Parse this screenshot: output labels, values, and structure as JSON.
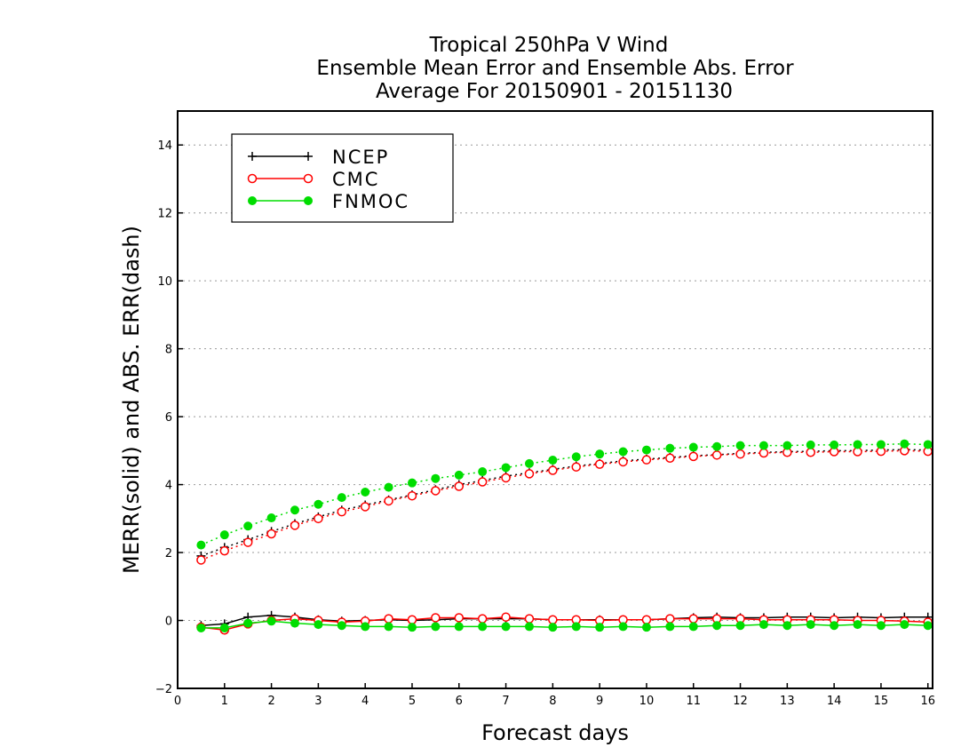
{
  "chart_data": {
    "type": "line",
    "title_lines": [
      "Tropical 250hPa V Wind",
      "Ensemble Mean Error and Ensemble Abs. Error",
      "Average For 20150901 - 20151130"
    ],
    "xlabel": "Forecast days",
    "ylabel": "MERR(solid) and ABS. ERR(dash)",
    "xlim": [
      0,
      16.1
    ],
    "ylim": [
      -2,
      15
    ],
    "xticks": [
      0,
      1,
      2,
      3,
      4,
      5,
      6,
      7,
      8,
      9,
      10,
      11,
      12,
      13,
      14,
      15,
      16
    ],
    "yticks": [
      -2,
      0,
      2,
      4,
      6,
      8,
      10,
      12,
      14
    ],
    "grid": "horizontal dotted",
    "legend_position": "top-left",
    "x": [
      0.5,
      1,
      1.5,
      2,
      2.5,
      3,
      3.5,
      4,
      4.5,
      5,
      5.5,
      6,
      6.5,
      7,
      7.5,
      8,
      8.5,
      9,
      9.5,
      10,
      10.5,
      11,
      11.5,
      12,
      12.5,
      13,
      13.5,
      14,
      14.5,
      15,
      15.5,
      16
    ],
    "series": [
      {
        "name": "NCEP",
        "color": "#000000",
        "marker": "plus",
        "merr": [
          -0.15,
          -0.1,
          0.1,
          0.15,
          0.1,
          0.02,
          -0.02,
          0.0,
          0.02,
          0.0,
          0.02,
          0.05,
          0.05,
          0.05,
          0.05,
          0.02,
          0.02,
          0.02,
          0.02,
          0.02,
          0.05,
          0.08,
          0.1,
          0.08,
          0.08,
          0.1,
          0.1,
          0.08,
          0.1,
          0.08,
          0.1,
          0.1
        ],
        "abs_err": [
          1.9,
          2.15,
          2.38,
          2.62,
          2.85,
          3.05,
          3.25,
          3.4,
          3.55,
          3.7,
          3.85,
          4.0,
          4.12,
          4.25,
          4.35,
          4.45,
          4.55,
          4.62,
          4.7,
          4.75,
          4.8,
          4.85,
          4.88,
          4.92,
          4.95,
          4.97,
          4.98,
          5.0,
          5.0,
          5.02,
          5.03,
          5.02
        ]
      },
      {
        "name": "CMC",
        "color": "#ff0000",
        "marker": "open-circle",
        "merr": [
          -0.2,
          -0.28,
          -0.1,
          0.0,
          0.05,
          0.0,
          -0.05,
          -0.02,
          0.05,
          0.02,
          0.08,
          0.08,
          0.05,
          0.1,
          0.05,
          0.02,
          0.02,
          0.0,
          0.02,
          0.02,
          0.05,
          0.05,
          0.05,
          0.05,
          0.02,
          0.02,
          0.02,
          0.02,
          0.0,
          0.0,
          -0.02,
          -0.05
        ],
        "abs_err": [
          1.78,
          2.05,
          2.3,
          2.55,
          2.8,
          3.0,
          3.2,
          3.35,
          3.52,
          3.67,
          3.82,
          3.95,
          4.08,
          4.2,
          4.32,
          4.42,
          4.52,
          4.6,
          4.67,
          4.73,
          4.78,
          4.83,
          4.87,
          4.9,
          4.93,
          4.95,
          4.95,
          4.97,
          4.97,
          4.98,
          5.0,
          4.98
        ]
      },
      {
        "name": "FNMOC",
        "color": "#00dd00",
        "marker": "filled-circle",
        "merr": [
          -0.22,
          -0.22,
          -0.08,
          -0.02,
          -0.08,
          -0.12,
          -0.15,
          -0.18,
          -0.18,
          -0.2,
          -0.18,
          -0.18,
          -0.18,
          -0.18,
          -0.18,
          -0.2,
          -0.18,
          -0.2,
          -0.18,
          -0.2,
          -0.18,
          -0.18,
          -0.15,
          -0.15,
          -0.12,
          -0.15,
          -0.12,
          -0.15,
          -0.12,
          -0.15,
          -0.12,
          -0.15
        ],
        "abs_err": [
          2.22,
          2.52,
          2.78,
          3.02,
          3.25,
          3.42,
          3.62,
          3.78,
          3.92,
          4.05,
          4.18,
          4.28,
          4.38,
          4.5,
          4.62,
          4.72,
          4.82,
          4.9,
          4.97,
          5.02,
          5.07,
          5.1,
          5.12,
          5.15,
          5.15,
          5.15,
          5.17,
          5.17,
          5.18,
          5.18,
          5.2,
          5.18
        ]
      }
    ]
  }
}
